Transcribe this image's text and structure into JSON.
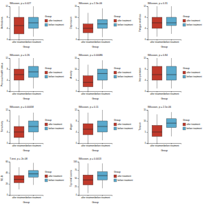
{
  "chart_data": [
    {
      "type": "box",
      "title": "Wilcoxon, p = 0.027",
      "y_label": "Anhedonia",
      "x_label": "Group",
      "legend_title": "Group",
      "categories": [
        "after treatment",
        "before treatment"
      ],
      "ylim": [
        0,
        12
      ],
      "yticks": [
        0,
        4,
        8,
        12
      ],
      "boxes": [
        {
          "name": "after treatment",
          "color": "#c0392b",
          "min": 0,
          "q1": 2,
          "median": 5,
          "q3": 8,
          "max": 12
        },
        {
          "name": "before treatment",
          "color": "#5aa9cc",
          "min": 1,
          "q1": 4,
          "median": 6,
          "q3": 8,
          "max": 12
        }
      ]
    },
    {
      "type": "box",
      "title": "Wilcoxon, p = 2.3e-06",
      "y_label": "Depression",
      "x_label": "Group",
      "legend_title": "Group",
      "categories": [
        "after treatment",
        "before treatment"
      ],
      "ylim": [
        0,
        15
      ],
      "yticks": [
        0,
        5,
        10,
        15
      ],
      "boxes": [
        {
          "name": "after treatment",
          "color": "#c0392b",
          "min": 0,
          "q1": 3,
          "median": 5,
          "q3": 7,
          "max": 12
        },
        {
          "name": "before treatment",
          "color": "#5aa9cc",
          "min": 1,
          "q1": 5,
          "median": 7,
          "q3": 9,
          "max": 14
        }
      ]
    },
    {
      "type": "box",
      "title": "Wilcoxon, p = 0.31",
      "y_label": "Fatigue and loss",
      "x_label": "Group",
      "legend_title": "Group",
      "categories": [
        "after treatment",
        "before treatment"
      ],
      "ylim": [
        0,
        12
      ],
      "yticks": [
        0,
        4,
        8,
        12
      ],
      "boxes": [
        {
          "name": "after treatment",
          "color": "#c0392b",
          "min": 1,
          "q1": 4,
          "median": 6,
          "q3": 8,
          "max": 12
        },
        {
          "name": "before treatment",
          "color": "#5aa9cc",
          "min": 2,
          "q1": 5,
          "median": 6,
          "q3": 8,
          "max": 12
        }
      ]
    },
    {
      "type": "box",
      "title": "Wilcoxon, p = 0.26",
      "y_label": "Previous health status",
      "x_label": "Group",
      "legend_title": "Group",
      "categories": [
        "after treatment",
        "before treatment"
      ],
      "ylim": [
        0,
        12
      ],
      "yticks": [
        0,
        4,
        8,
        12
      ],
      "boxes": [
        {
          "name": "after treatment",
          "color": "#c0392b",
          "min": 0,
          "q1": 4,
          "median": 6,
          "q3": 8,
          "max": 12
        },
        {
          "name": "before treatment",
          "color": "#5aa9cc",
          "min": 1,
          "q1": 5,
          "median": 7,
          "q3": 9,
          "max": 12
        }
      ]
    },
    {
      "type": "box",
      "title": "Wilcoxon, p = 0.00086",
      "y_label": "Anxiety",
      "x_label": "Group",
      "legend_title": "Group",
      "categories": [
        "after treatment",
        "before treatment"
      ],
      "ylim": [
        0,
        15
      ],
      "yticks": [
        0,
        5,
        10,
        15
      ],
      "boxes": [
        {
          "name": "after treatment",
          "color": "#c0392b",
          "min": 0,
          "q1": 2,
          "median": 4,
          "q3": 7,
          "max": 12
        },
        {
          "name": "before treatment",
          "color": "#5aa9cc",
          "min": 1,
          "q1": 5,
          "median": 8,
          "q3": 10,
          "max": 14
        }
      ]
    },
    {
      "type": "box",
      "title": "Wilcoxon, p = 0.84",
      "y_label": "Interpretation",
      "x_label": "Group",
      "legend_title": "Group",
      "categories": [
        "after treatment",
        "before treatment"
      ],
      "ylim": [
        0,
        12
      ],
      "yticks": [
        0,
        4,
        8,
        12
      ],
      "boxes": [
        {
          "name": "after treatment",
          "color": "#c0392b",
          "min": 1,
          "q1": 4,
          "median": 6,
          "q3": 9,
          "max": 12
        },
        {
          "name": "before treatment",
          "color": "#5aa9cc",
          "min": 1,
          "q1": 4,
          "median": 6,
          "q3": 9,
          "max": 12
        }
      ]
    },
    {
      "type": "box",
      "title": "Wilcoxon, p = 0.00058",
      "y_label": "Sensitivity",
      "x_label": "Group",
      "legend_title": "Group",
      "categories": [
        "after treatment",
        "before treatment"
      ],
      "ylim": [
        0,
        12
      ],
      "yticks": [
        0,
        4,
        8,
        12
      ],
      "boxes": [
        {
          "name": "after treatment",
          "color": "#c0392b",
          "min": 0,
          "q1": 2,
          "median": 4,
          "q3": 6,
          "max": 10
        },
        {
          "name": "before treatment",
          "color": "#5aa9cc",
          "min": 1,
          "q1": 4,
          "median": 6,
          "q3": 8,
          "max": 11
        }
      ]
    },
    {
      "type": "box",
      "title": "Wilcoxon, p = 0.11",
      "y_label": "Anger",
      "x_label": "Group",
      "legend_title": "Group",
      "categories": [
        "after treatment",
        "before treatment"
      ],
      "ylim": [
        0,
        12
      ],
      "yticks": [
        0,
        4,
        8,
        12
      ],
      "boxes": [
        {
          "name": "after treatment",
          "color": "#c0392b",
          "min": 0,
          "q1": 3,
          "median": 5,
          "q3": 7,
          "max": 11
        },
        {
          "name": "before treatment",
          "color": "#5aa9cc",
          "min": 1,
          "q1": 4,
          "median": 6,
          "q3": 8,
          "max": 12
        }
      ]
    },
    {
      "type": "box",
      "title": "Wilcoxon, p = 2.5e-06",
      "y_label": "Tension",
      "x_label": "Group",
      "legend_title": "Group",
      "categories": [
        "after treatment",
        "before treatment"
      ],
      "ylim": [
        0,
        15
      ],
      "yticks": [
        0,
        5,
        10,
        15
      ],
      "boxes": [
        {
          "name": "after treatment",
          "color": "#c0392b",
          "min": 0,
          "q1": 3,
          "median": 5,
          "q3": 8,
          "max": 13
        },
        {
          "name": "before treatment",
          "color": "#5aa9cc",
          "min": 3,
          "q1": 7,
          "median": 9,
          "q3": 11,
          "max": 14
        }
      ]
    },
    {
      "type": "box",
      "title": "T-test, p = 2e-08",
      "y_label": "SE-B",
      "x_label": "Group",
      "legend_title": "Group",
      "categories": [
        "after treatment",
        "before treatment"
      ],
      "ylim": [
        0,
        60
      ],
      "yticks": [
        0,
        20,
        40,
        60
      ],
      "boxes": [
        {
          "name": "after treatment",
          "color": "#c0392b",
          "min": 10,
          "q1": 22,
          "median": 28,
          "q3": 35,
          "max": 50
        },
        {
          "name": "before treatment",
          "color": "#5aa9cc",
          "min": 18,
          "q1": 32,
          "median": 38,
          "q3": 44,
          "max": 58
        }
      ]
    },
    {
      "type": "box",
      "title": "Wilcoxon, p = 0.0013",
      "y_label": "Top total scores",
      "x_label": "Group",
      "legend_title": "Group",
      "categories": [
        "after treatment",
        "before treatment"
      ],
      "ylim": [
        0,
        100
      ],
      "yticks": [
        0,
        25,
        50,
        75,
        100
      ],
      "boxes": [
        {
          "name": "after treatment",
          "color": "#c0392b",
          "min": 5,
          "q1": 30,
          "median": 45,
          "q3": 60,
          "max": 95
        },
        {
          "name": "before treatment",
          "color": "#5aa9cc",
          "min": 20,
          "q1": 45,
          "median": 58,
          "q3": 70,
          "max": 95
        }
      ]
    }
  ]
}
